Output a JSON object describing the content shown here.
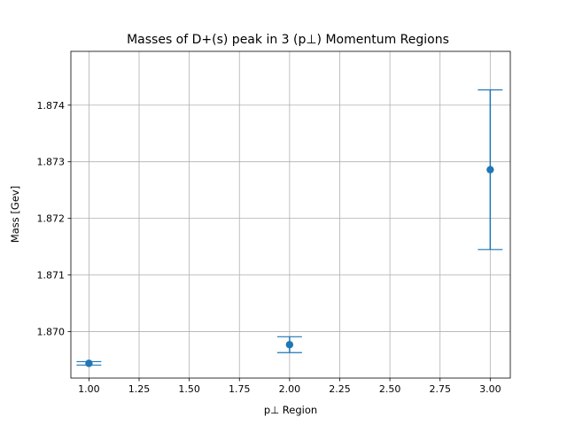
{
  "chart_data": {
    "type": "scatter",
    "title": "Masses of D+(s) peak in 3 (p⊥) Momentum Regions",
    "xlabel": "p⊥ Region",
    "ylabel": "Mass [Gev]",
    "xlim": [
      0.91,
      3.1
    ],
    "ylim": [
      1.86918,
      1.87495
    ],
    "grid": true,
    "x_ticks": [
      1.0,
      1.25,
      1.5,
      1.75,
      2.0,
      2.25,
      2.5,
      2.75,
      3.0
    ],
    "x_tick_labels": [
      "1.00",
      "1.25",
      "1.50",
      "1.75",
      "2.00",
      "2.25",
      "2.50",
      "2.75",
      "3.00"
    ],
    "y_ticks": [
      1.87,
      1.871,
      1.872,
      1.873,
      1.874
    ],
    "y_tick_labels": [
      "1.870",
      "1.871",
      "1.872",
      "1.873",
      "1.874"
    ],
    "series": [
      {
        "color": "#1f77b4",
        "x": [
          1,
          2,
          3
        ],
        "y": [
          1.86944,
          1.86977,
          1.87286
        ],
        "yerr": [
          3e-05,
          0.00014,
          0.00141
        ]
      }
    ]
  }
}
